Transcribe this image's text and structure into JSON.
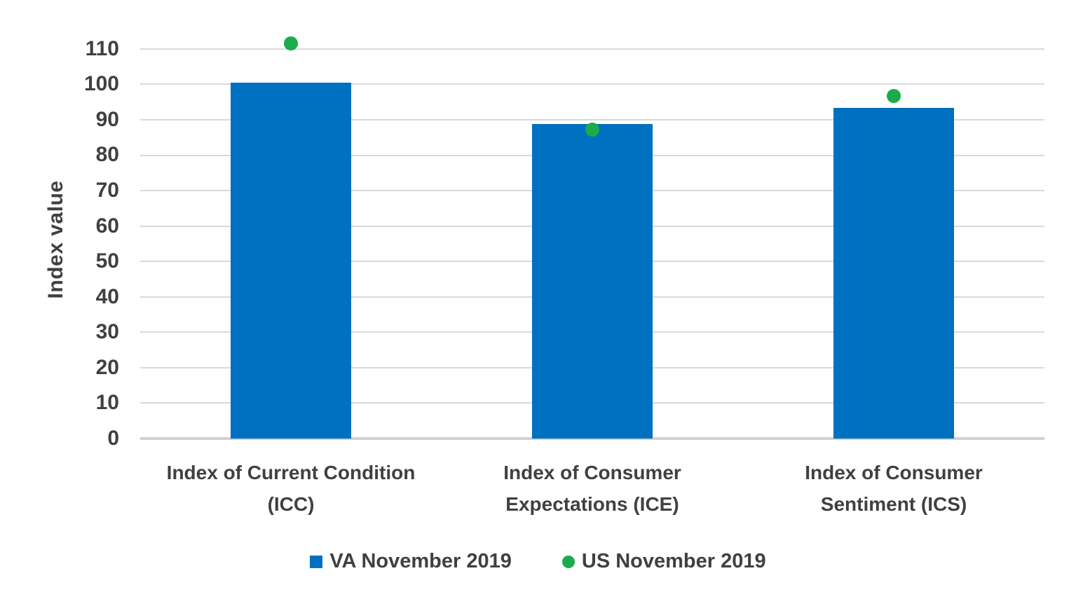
{
  "chart_data": {
    "type": "bar",
    "categories": [
      [
        "Index of Current Condition",
        "(ICC)"
      ],
      [
        "Index of Consumer",
        "Expectations (ICE)"
      ],
      [
        "Index of Consumer",
        "Sentiment (ICS)"
      ]
    ],
    "series": [
      {
        "name": "VA November 2019",
        "type": "bar",
        "color": "#0070c0",
        "values": [
          100.4,
          88.8,
          93.3
        ]
      },
      {
        "name": "US November 2019",
        "type": "scatter",
        "color": "#1aab4c",
        "values": [
          111.6,
          87.3,
          96.8
        ]
      }
    ],
    "title": "",
    "xlabel": "",
    "ylabel": "Index value",
    "ylim": [
      0,
      110
    ],
    "ytick_step": 10,
    "grid": true,
    "legend_position": "bottom",
    "colors": {
      "bar_blue": "#0070c0",
      "dot_green": "#1aab4c",
      "text": "#404040",
      "gridline": "#d9d9d9",
      "baseline": "#d2d0d0"
    }
  }
}
